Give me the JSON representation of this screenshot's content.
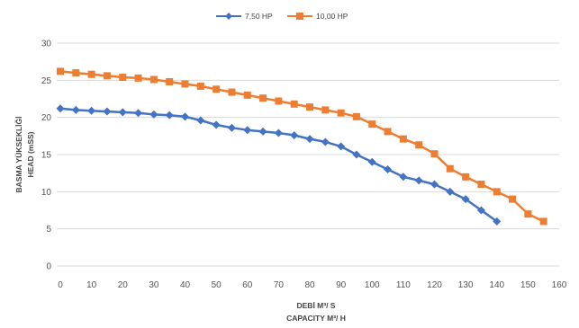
{
  "chart_data": {
    "type": "line",
    "xlabel": [
      "DEBİ M³/ S",
      "CAPACITY M³/ H"
    ],
    "ylabel": [
      "BASMA YÜKSEKLİĞİ",
      "HEAD (mSS)"
    ],
    "xlim": [
      0,
      160
    ],
    "ylim": [
      0,
      30
    ],
    "x_ticks": [
      0,
      10,
      20,
      30,
      40,
      50,
      60,
      70,
      80,
      90,
      100,
      110,
      120,
      130,
      140,
      150,
      160
    ],
    "y_ticks": [
      0,
      5,
      10,
      15,
      20,
      25,
      30
    ],
    "grid": "horizontal",
    "legend_position": "top",
    "series": [
      {
        "name": "7,50 HP",
        "color": "#4472C4",
        "marker": "diamond",
        "x": [
          0,
          5,
          10,
          15,
          20,
          25,
          30,
          35,
          40,
          45,
          50,
          55,
          60,
          65,
          70,
          75,
          80,
          85,
          90,
          95,
          100,
          105,
          110,
          115,
          120,
          125,
          130,
          135,
          140
        ],
        "y": [
          21.2,
          21.0,
          20.9,
          20.8,
          20.7,
          20.6,
          20.4,
          20.3,
          20.1,
          19.6,
          19.0,
          18.6,
          18.3,
          18.1,
          17.9,
          17.6,
          17.1,
          16.7,
          16.1,
          15.0,
          14.0,
          13.0,
          12.0,
          11.5,
          11.0,
          10.0,
          9.0,
          7.5,
          6.0
        ]
      },
      {
        "name": "10,00 HP",
        "color": "#ED7D31",
        "marker": "square",
        "x": [
          0,
          5,
          10,
          15,
          20,
          25,
          30,
          35,
          40,
          45,
          50,
          55,
          60,
          65,
          70,
          75,
          80,
          85,
          90,
          95,
          100,
          105,
          110,
          115,
          120,
          125,
          130,
          135,
          140,
          145,
          150,
          155
        ],
        "y": [
          26.2,
          26.0,
          25.8,
          25.6,
          25.4,
          25.3,
          25.1,
          24.8,
          24.5,
          24.2,
          23.8,
          23.4,
          23.0,
          22.6,
          22.2,
          21.8,
          21.4,
          21.0,
          20.6,
          20.1,
          19.1,
          18.1,
          17.1,
          16.3,
          15.1,
          13.1,
          12.0,
          11.0,
          10.0,
          9.0,
          7.0,
          6.0
        ]
      }
    ]
  }
}
